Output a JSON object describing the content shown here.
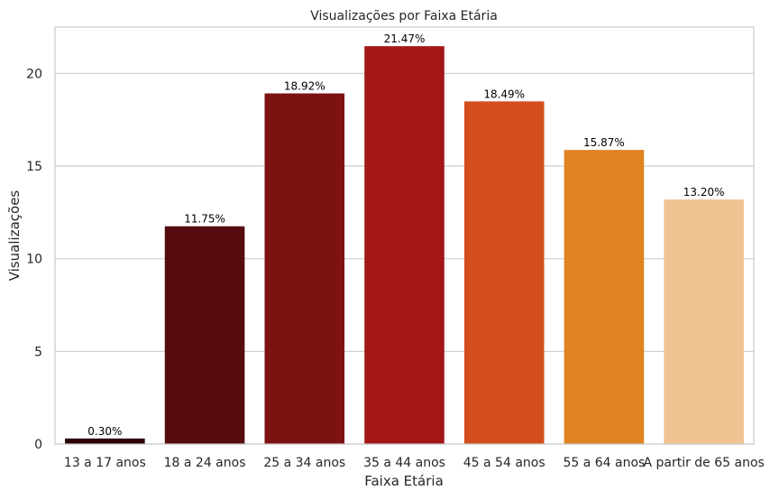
{
  "chart_data": {
    "type": "bar",
    "title": "Visualizações por Faixa Etária",
    "xlabel": "Faixa Etária",
    "ylabel": "Visualizações",
    "categories": [
      "13 a 17 anos",
      "18 a 24 anos",
      "25 a 34 anos",
      "35 a 44 anos",
      "45 a 54 anos",
      "55 a 64 anos",
      "A partir de 65 anos"
    ],
    "values": [
      0.3,
      11.75,
      18.92,
      21.47,
      18.49,
      15.87,
      13.2
    ],
    "data_labels": [
      "0.30%",
      "11.75%",
      "18.92%",
      "21.47%",
      "18.49%",
      "15.87%",
      "13.20%"
    ],
    "colors": [
      "#2b0006",
      "#560c0e",
      "#7c1212",
      "#a51717",
      "#d24f1d",
      "#e08321",
      "#f0c392"
    ],
    "ylim": [
      0,
      22.5
    ],
    "yticks": [
      0,
      5,
      10,
      15,
      20
    ],
    "grid": true
  }
}
